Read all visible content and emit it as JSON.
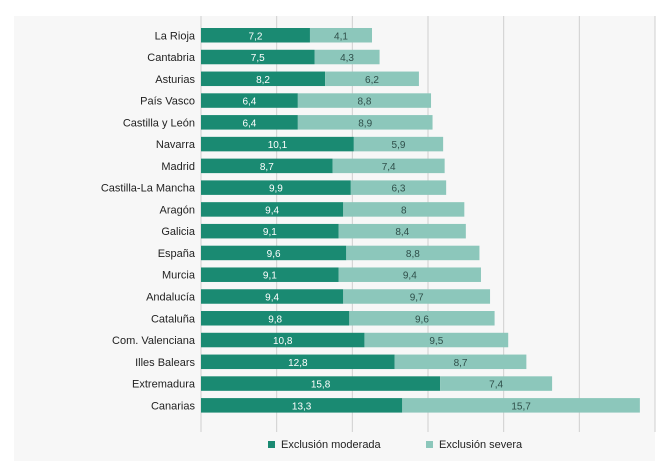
{
  "chart_data": {
    "type": "bar",
    "orientation": "horizontal",
    "stacked": true,
    "title": "",
    "xlabel": "",
    "ylabel": "",
    "xlim": [
      0,
      30
    ],
    "grid": true,
    "legend_position": "bottom",
    "categories": [
      "La Rioja",
      "Cantabria",
      "Asturias",
      "País Vasco",
      "Castilla y León",
      "Navarra",
      "Madrid",
      "Castilla-La Mancha",
      "Aragón",
      "Galicia",
      "España",
      "Murcia",
      "Andalucía",
      "Cataluña",
      "Com. Valenciana",
      "Illes Balears",
      "Extremadura",
      "Canarias"
    ],
    "series": [
      {
        "name": "Exclusión moderada",
        "color": "#1a8a72",
        "values": [
          7.2,
          7.5,
          8.2,
          6.4,
          6.4,
          10.1,
          8.7,
          9.9,
          9.4,
          9.1,
          9.6,
          9.1,
          9.4,
          9.8,
          10.8,
          12.8,
          15.8,
          13.3
        ]
      },
      {
        "name": "Exclusión severa",
        "color": "#8cc7bb",
        "values": [
          4.1,
          4.3,
          6.2,
          8.8,
          8.9,
          5.9,
          7.4,
          6.3,
          8,
          8.4,
          8.8,
          9.4,
          9.7,
          9.6,
          9.5,
          8.7,
          7.4,
          15.7
        ]
      }
    ],
    "value_labels": [
      [
        "7,2",
        "7,5",
        "8,2",
        "6,4",
        "6,4",
        "10,1",
        "8,7",
        "9,9",
        "9,4",
        "9,1",
        "9,6",
        "9,1",
        "9,4",
        "9,8",
        "10,8",
        "12,8",
        "15,8",
        "13,3"
      ],
      [
        "4,1",
        "4,3",
        "6,2",
        "8,8",
        "8,9",
        "5,9",
        "7,4",
        "6,3",
        "8",
        "8,4",
        "8,8",
        "9,4",
        "9,7",
        "9,6",
        "9,5",
        "8,7",
        "7,4",
        "15,7"
      ]
    ]
  }
}
